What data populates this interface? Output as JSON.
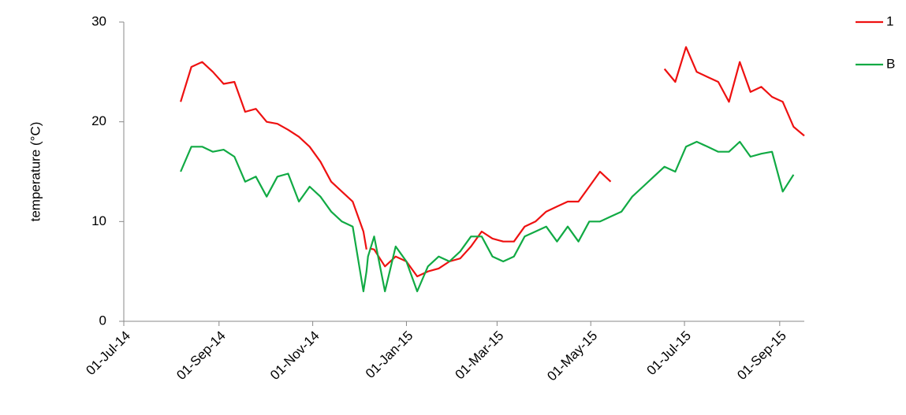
{
  "chart_data": {
    "type": "line",
    "y_label": "temperature (°C)",
    "x": [
      "2014-08-07",
      "2014-08-14",
      "2014-08-21",
      "2014-08-28",
      "2014-09-04",
      "2014-09-11",
      "2014-09-18",
      "2014-09-25",
      "2014-10-02",
      "2014-10-09",
      "2014-10-16",
      "2014-10-23",
      "2014-10-30",
      "2014-11-06",
      "2014-11-13",
      "2014-11-20",
      "2014-11-27",
      "2014-12-04",
      "2014-12-06",
      "2014-12-07",
      "2014-12-08",
      "2014-12-11",
      "2014-12-18",
      "2014-12-25",
      "2015-01-01",
      "2015-01-08",
      "2015-01-15",
      "2015-01-22",
      "2015-01-29",
      "2015-02-05",
      "2015-02-12",
      "2015-02-19",
      "2015-02-26",
      "2015-03-05",
      "2015-03-12",
      "2015-03-19",
      "2015-03-26",
      "2015-04-02",
      "2015-04-09",
      "2015-04-16",
      "2015-04-23",
      "2015-04-30",
      "2015-05-07",
      "2015-05-14",
      "2015-05-21",
      "2015-05-28",
      "2015-06-04",
      "2015-06-11",
      "2015-06-18",
      "2015-06-25",
      "2015-07-02",
      "2015-07-09",
      "2015-07-16",
      "2015-07-23",
      "2015-07-30",
      "2015-08-06",
      "2015-08-13",
      "2015-08-20",
      "2015-08-27",
      "2015-09-03",
      "2015-09-10",
      "2015-09-17"
    ],
    "series": [
      {
        "name": "1",
        "color": "#ee1111",
        "values": [
          22,
          25.5,
          26,
          25,
          23.8,
          24,
          21,
          21.3,
          20,
          19.8,
          19.2,
          18.5,
          17.5,
          16,
          14,
          13,
          12,
          9,
          7.2,
          null,
          7.3,
          7.2,
          5.5,
          6.5,
          6,
          4.5,
          5,
          5.3,
          6,
          6.3,
          7.5,
          9,
          8.3,
          8,
          8,
          9.5,
          10,
          11,
          11.5,
          12,
          12,
          13.5,
          15,
          14,
          null,
          null,
          null,
          null,
          25.3,
          24,
          27.5,
          25,
          24.5,
          24,
          22,
          26,
          23,
          23.5,
          22.5,
          22,
          19.5,
          18.6
        ]
      },
      {
        "name": "B",
        "color": "#11aa44",
        "values": [
          15,
          17.5,
          17.5,
          17,
          17.2,
          16.5,
          14,
          14.5,
          12.5,
          14.5,
          14.8,
          12,
          13.5,
          12.5,
          11,
          10,
          9.5,
          3,
          5,
          6.5,
          7,
          8.5,
          3,
          7.5,
          6,
          3,
          5.5,
          6.5,
          6,
          7,
          8.5,
          8.5,
          6.5,
          6,
          6.5,
          8.5,
          9,
          9.5,
          8,
          9.5,
          8,
          10,
          10,
          10.5,
          11,
          12.5,
          13.5,
          14.5,
          15.5,
          15,
          17.5,
          18,
          17.5,
          17,
          17,
          18,
          16.5,
          16.8,
          17,
          13,
          14.7,
          null
        ]
      }
    ],
    "xlim": [
      "2014-07-01",
      "2015-09-17"
    ],
    "xticks": [
      {
        "value": "2014-07-01",
        "label": "01-Jul-14"
      },
      {
        "value": "2014-09-01",
        "label": "01-Sep-14"
      },
      {
        "value": "2014-11-01",
        "label": "01-Nov-14"
      },
      {
        "value": "2015-01-01",
        "label": "01-Jan-15"
      },
      {
        "value": "2015-03-01",
        "label": "01-Mar-15"
      },
      {
        "value": "2015-05-01",
        "label": "01-May-15"
      },
      {
        "value": "2015-07-01",
        "label": "01-Jul-15"
      },
      {
        "value": "2015-09-01",
        "label": "01-Sep-15"
      }
    ],
    "ylim": [
      0,
      30
    ],
    "yticks": [
      0,
      10,
      20,
      30
    ],
    "grid": false,
    "legend": "top-right"
  }
}
